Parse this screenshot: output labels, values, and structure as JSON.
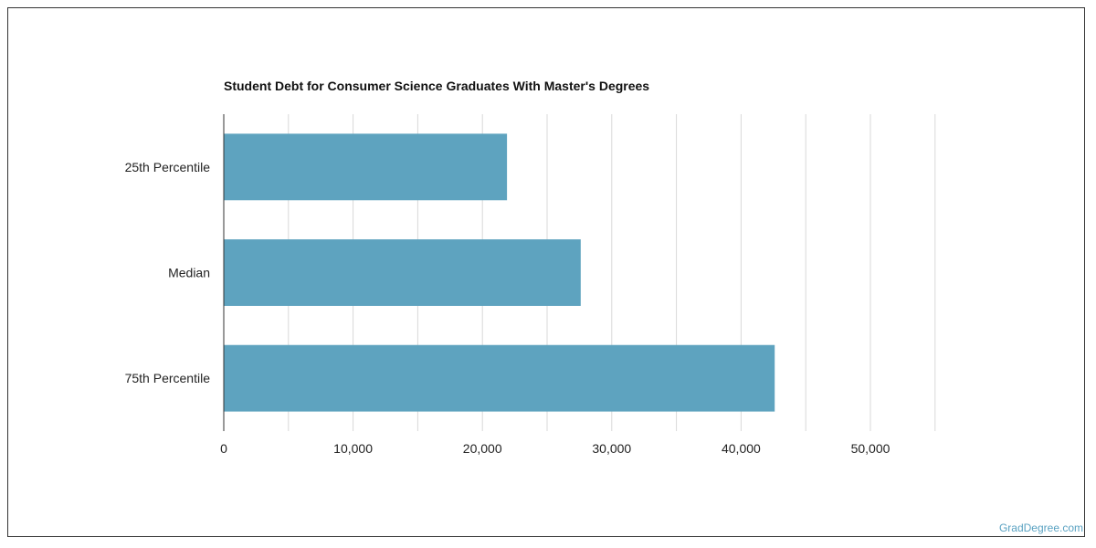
{
  "chart_data": {
    "type": "bar",
    "orientation": "horizontal",
    "title": "Student Debt for Consumer Science Graduates With Master's Degrees",
    "categories": [
      "25th Percentile",
      "Median",
      "75th Percentile"
    ],
    "values": [
      21900,
      27600,
      42600
    ],
    "xlim": [
      0,
      55000
    ],
    "xticks": [
      0,
      10000,
      20000,
      30000,
      40000,
      50000
    ],
    "xtick_labels": [
      "0",
      "10,000",
      "20,000",
      "30,000",
      "40,000",
      "50,000"
    ],
    "grid": true,
    "bar_color": "#5ea3bf"
  },
  "source": "GradDegree.com"
}
